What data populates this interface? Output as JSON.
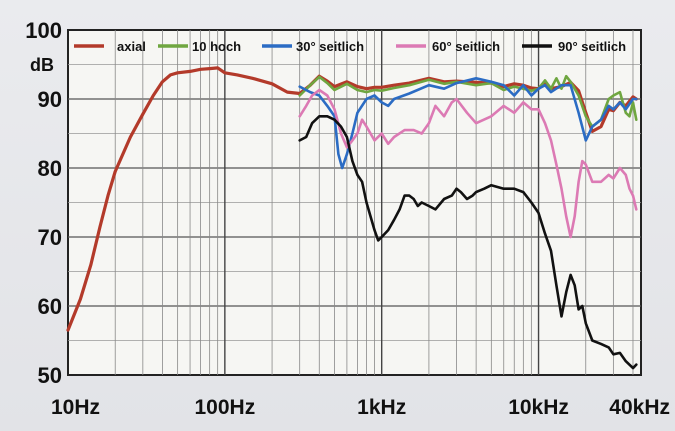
{
  "chart_data": {
    "type": "line",
    "ylabel": "dB",
    "ylim": [
      50,
      100
    ],
    "xlim": [
      10,
      45000
    ],
    "xscale": "log",
    "grid": true,
    "legend_placement": "top",
    "y_ticks": [
      50,
      60,
      70,
      80,
      90,
      100
    ],
    "x_ticks": [
      {
        "value": 10,
        "label": "10Hz"
      },
      {
        "value": 100,
        "label": "100Hz"
      },
      {
        "value": 1000,
        "label": "1kHz"
      },
      {
        "value": 10000,
        "label": "10kHz"
      },
      {
        "value": 40000,
        "label": "40kHz"
      }
    ],
    "series": [
      {
        "name": "axial",
        "color": "#b33a2a",
        "points": [
          [
            10,
            56.5
          ],
          [
            12,
            61
          ],
          [
            14,
            66
          ],
          [
            16,
            71.5
          ],
          [
            18,
            76
          ],
          [
            20,
            79.5
          ],
          [
            25,
            84.5
          ],
          [
            30,
            87.8
          ],
          [
            35,
            90.5
          ],
          [
            40,
            92.5
          ],
          [
            45,
            93.5
          ],
          [
            50,
            93.8
          ],
          [
            60,
            94
          ],
          [
            70,
            94.3
          ],
          [
            80,
            94.4
          ],
          [
            90,
            94.5
          ],
          [
            100,
            93.8
          ],
          [
            120,
            93.5
          ],
          [
            150,
            93
          ],
          [
            200,
            92.2
          ],
          [
            250,
            91
          ],
          [
            300,
            90.8
          ],
          [
            350,
            92
          ],
          [
            400,
            93.3
          ],
          [
            450,
            92.6
          ],
          [
            500,
            91.8
          ],
          [
            600,
            92.5
          ],
          [
            700,
            91.8
          ],
          [
            800,
            91.5
          ],
          [
            900,
            91.7
          ],
          [
            1000,
            91.7
          ],
          [
            1200,
            92
          ],
          [
            1500,
            92.3
          ],
          [
            2000,
            93
          ],
          [
            2500,
            92.5
          ],
          [
            3000,
            92.6
          ],
          [
            4000,
            92.4
          ],
          [
            5000,
            92.3
          ],
          [
            6000,
            91.8
          ],
          [
            7000,
            92.2
          ],
          [
            8000,
            92
          ],
          [
            9000,
            91.6
          ],
          [
            10000,
            91.5
          ],
          [
            11000,
            92.5
          ],
          [
            12000,
            91.5
          ],
          [
            14000,
            91.8
          ],
          [
            16000,
            92.4
          ],
          [
            18000,
            91.2
          ],
          [
            20000,
            88
          ],
          [
            22000,
            85.3
          ],
          [
            25000,
            86
          ],
          [
            28000,
            88.5
          ],
          [
            30000,
            88.3
          ],
          [
            33000,
            89.5
          ],
          [
            36000,
            89
          ],
          [
            40000,
            90.3
          ],
          [
            42000,
            90
          ]
        ]
      },
      {
        "name": "10 hoch",
        "color": "#6fa640",
        "points": [
          [
            300,
            90.5
          ],
          [
            350,
            92
          ],
          [
            400,
            93.2
          ],
          [
            450,
            92.3
          ],
          [
            500,
            91.3
          ],
          [
            600,
            92.2
          ],
          [
            700,
            91.3
          ],
          [
            800,
            91
          ],
          [
            900,
            91.3
          ],
          [
            1000,
            91.2
          ],
          [
            1200,
            91.6
          ],
          [
            1500,
            92
          ],
          [
            2000,
            92.8
          ],
          [
            2500,
            92.2
          ],
          [
            3000,
            92.5
          ],
          [
            4000,
            92
          ],
          [
            5000,
            92.3
          ],
          [
            6000,
            91.3
          ],
          [
            7000,
            91.8
          ],
          [
            8000,
            91.5
          ],
          [
            9000,
            91.2
          ],
          [
            10000,
            91.5
          ],
          [
            11000,
            92.7
          ],
          [
            12000,
            91.5
          ],
          [
            13000,
            93
          ],
          [
            14000,
            91.5
          ],
          [
            15000,
            93.3
          ],
          [
            16000,
            92.5
          ],
          [
            18000,
            90.5
          ],
          [
            20000,
            87.5
          ],
          [
            22000,
            86
          ],
          [
            25000,
            87
          ],
          [
            28000,
            90
          ],
          [
            30000,
            90.5
          ],
          [
            33000,
            91
          ],
          [
            36000,
            88
          ],
          [
            38000,
            87.5
          ],
          [
            40000,
            89.5
          ],
          [
            42000,
            87
          ]
        ]
      },
      {
        "name": "30° seitlich",
        "color": "#2b6cc4",
        "points": [
          [
            300,
            91.8
          ],
          [
            350,
            91
          ],
          [
            400,
            90.5
          ],
          [
            450,
            89
          ],
          [
            500,
            87.5
          ],
          [
            530,
            82
          ],
          [
            560,
            80
          ],
          [
            600,
            82
          ],
          [
            650,
            85
          ],
          [
            700,
            88
          ],
          [
            800,
            90
          ],
          [
            900,
            90.5
          ],
          [
            1000,
            89.5
          ],
          [
            1100,
            89
          ],
          [
            1200,
            90
          ],
          [
            1500,
            90.8
          ],
          [
            2000,
            92
          ],
          [
            2500,
            91.5
          ],
          [
            3000,
            92.3
          ],
          [
            4000,
            93
          ],
          [
            5000,
            92.5
          ],
          [
            6000,
            92
          ],
          [
            7000,
            90.5
          ],
          [
            8000,
            92
          ],
          [
            9000,
            90.5
          ],
          [
            10000,
            91.5
          ],
          [
            11000,
            92
          ],
          [
            12000,
            91
          ],
          [
            14000,
            92
          ],
          [
            16000,
            92
          ],
          [
            18000,
            88
          ],
          [
            20000,
            84
          ],
          [
            22000,
            86
          ],
          [
            25000,
            87
          ],
          [
            28000,
            89
          ],
          [
            30000,
            88.5
          ],
          [
            33000,
            89.5
          ],
          [
            36000,
            88.5
          ],
          [
            40000,
            90
          ],
          [
            42000,
            90
          ]
        ]
      },
      {
        "name": "60° seitlich",
        "color": "#dc7ab4",
        "points": [
          [
            300,
            87.5
          ],
          [
            330,
            89
          ],
          [
            360,
            90.5
          ],
          [
            400,
            91.3
          ],
          [
            450,
            90.5
          ],
          [
            500,
            88.5
          ],
          [
            550,
            85
          ],
          [
            600,
            83
          ],
          [
            650,
            84
          ],
          [
            700,
            85
          ],
          [
            750,
            87
          ],
          [
            800,
            86
          ],
          [
            900,
            84
          ],
          [
            1000,
            85
          ],
          [
            1100,
            83.5
          ],
          [
            1200,
            84.5
          ],
          [
            1400,
            85.5
          ],
          [
            1600,
            85.5
          ],
          [
            1800,
            85
          ],
          [
            2000,
            86.5
          ],
          [
            2200,
            89
          ],
          [
            2500,
            87.5
          ],
          [
            2800,
            89.5
          ],
          [
            3000,
            90
          ],
          [
            3500,
            88
          ],
          [
            4000,
            86.5
          ],
          [
            5000,
            87.5
          ],
          [
            6000,
            89
          ],
          [
            7000,
            88
          ],
          [
            8000,
            89.5
          ],
          [
            9000,
            88.5
          ],
          [
            10000,
            88.5
          ],
          [
            11000,
            86.5
          ],
          [
            12000,
            84
          ],
          [
            13000,
            80.5
          ],
          [
            14000,
            77
          ],
          [
            15000,
            73
          ],
          [
            16000,
            70
          ],
          [
            17000,
            73
          ],
          [
            18000,
            78
          ],
          [
            19000,
            81
          ],
          [
            20000,
            80.5
          ],
          [
            22000,
            78
          ],
          [
            25000,
            78
          ],
          [
            28000,
            79
          ],
          [
            30000,
            78.5
          ],
          [
            33000,
            80
          ],
          [
            36000,
            79
          ],
          [
            38000,
            77
          ],
          [
            40000,
            76
          ],
          [
            42000,
            74
          ]
        ]
      },
      {
        "name": "90° seitlich",
        "color": "#111111",
        "points": [
          [
            300,
            84
          ],
          [
            330,
            84.5
          ],
          [
            360,
            86.5
          ],
          [
            400,
            87.5
          ],
          [
            450,
            87.5
          ],
          [
            500,
            87
          ],
          [
            550,
            86
          ],
          [
            600,
            84.5
          ],
          [
            650,
            81
          ],
          [
            700,
            79
          ],
          [
            750,
            78
          ],
          [
            800,
            75
          ],
          [
            900,
            71
          ],
          [
            950,
            69.5
          ],
          [
            1000,
            70
          ],
          [
            1100,
            71
          ],
          [
            1200,
            72.5
          ],
          [
            1300,
            74
          ],
          [
            1400,
            76
          ],
          [
            1500,
            76
          ],
          [
            1600,
            75.5
          ],
          [
            1700,
            74.5
          ],
          [
            1800,
            75
          ],
          [
            2000,
            74.5
          ],
          [
            2200,
            74
          ],
          [
            2500,
            75.5
          ],
          [
            2800,
            76
          ],
          [
            3000,
            77
          ],
          [
            3200,
            76.5
          ],
          [
            3500,
            75.5
          ],
          [
            3800,
            76
          ],
          [
            4000,
            76.5
          ],
          [
            4500,
            77
          ],
          [
            5000,
            77.5
          ],
          [
            6000,
            77
          ],
          [
            7000,
            77
          ],
          [
            8000,
            76.5
          ],
          [
            9000,
            75
          ],
          [
            10000,
            73.5
          ],
          [
            11000,
            70.5
          ],
          [
            12000,
            68
          ],
          [
            13000,
            63
          ],
          [
            14000,
            58.5
          ],
          [
            15000,
            62
          ],
          [
            16000,
            64.5
          ],
          [
            17000,
            63
          ],
          [
            18000,
            59.5
          ],
          [
            19000,
            60
          ],
          [
            20000,
            57.5
          ],
          [
            22000,
            55
          ],
          [
            25000,
            54.5
          ],
          [
            28000,
            54
          ],
          [
            30000,
            53
          ],
          [
            33000,
            53.2
          ],
          [
            36000,
            52
          ],
          [
            40000,
            51
          ],
          [
            42000,
            51.5
          ]
        ]
      }
    ]
  }
}
